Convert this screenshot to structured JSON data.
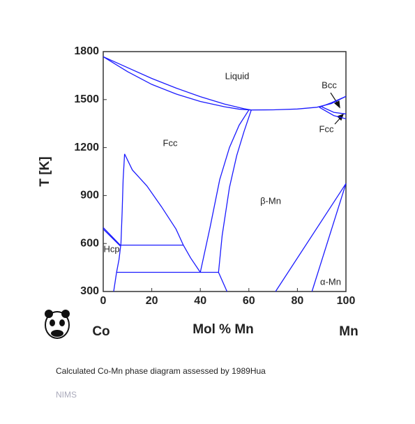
{
  "chart_data": {
    "type": "line",
    "ylabel": "T [K]",
    "xlabel": "Mol % Mn",
    "end_labels": [
      "Co",
      "Mn"
    ],
    "xlim": [
      0,
      100
    ],
    "ylim": [
      300,
      1800
    ],
    "xticks": [
      0,
      20,
      40,
      60,
      80,
      100
    ],
    "yticks": [
      300,
      600,
      900,
      1200,
      1500,
      1800
    ],
    "color": "#1a1aff",
    "annotations": [
      "Liquid",
      "Bcc",
      "Fcc",
      "Fcc",
      "β-Mn",
      "Hcp",
      "α-Mn"
    ],
    "series": [
      {
        "x": [
          0,
          10,
          20,
          30,
          40,
          50,
          58,
          61
        ],
        "values": [
          1768,
          1700,
          1632,
          1572,
          1518,
          1472,
          1443,
          1435
        ]
      },
      {
        "x": [
          0,
          10,
          20,
          30,
          40,
          50,
          56,
          61
        ],
        "values": [
          1768,
          1675,
          1595,
          1535,
          1488,
          1455,
          1440,
          1435
        ]
      },
      {
        "x": [
          61,
          70,
          80,
          88,
          94,
          100
        ],
        "values": [
          1435,
          1436,
          1441,
          1452,
          1475,
          1520
        ]
      },
      {
        "x": [
          89,
          94,
          100
        ],
        "values": [
          1452,
          1480,
          1520
        ]
      },
      {
        "x": [
          90,
          95,
          100
        ],
        "values": [
          1455,
          1420,
          1410
        ]
      },
      {
        "x": [
          89,
          95,
          100
        ],
        "values": [
          1452,
          1400,
          1380
        ]
      },
      {
        "x": [
          60,
          56,
          52,
          48,
          44,
          40
        ],
        "values": [
          1435,
          1340,
          1200,
          1000,
          700,
          420
        ]
      },
      {
        "x": [
          61,
          58,
          55,
          52,
          49,
          47.5,
          51
        ],
        "values": [
          1435,
          1300,
          1150,
          950,
          650,
          420,
          300
        ]
      },
      {
        "x": [
          8.8,
          12,
          18,
          24,
          30,
          33,
          36,
          40
        ],
        "values": [
          1160,
          1060,
          960,
          830,
          690,
          590,
          510,
          420
        ]
      },
      {
        "x": [
          8.8,
          8.2,
          7.8,
          7.3,
          6.5,
          5.5,
          4.3
        ],
        "values": [
          1160,
          1000,
          800,
          600,
          500,
          420,
          300
        ]
      },
      {
        "x": [
          7,
          33
        ],
        "values": [
          590,
          590
        ]
      },
      {
        "x": [
          5.5,
          47.5
        ],
        "values": [
          420,
          420
        ]
      },
      {
        "x": [
          0,
          7
        ],
        "values": [
          700,
          590
        ]
      },
      {
        "x": [
          0,
          7
        ],
        "values": [
          690,
          585
        ]
      },
      {
        "x": [
          71,
          100
        ],
        "values": [
          300,
          975
        ]
      },
      {
        "x": [
          86,
          100
        ],
        "values": [
          300,
          975
        ]
      }
    ]
  },
  "caption": "Calculated Co-Mn phase diagram assessed by 1989Hua",
  "source": "NIMS"
}
